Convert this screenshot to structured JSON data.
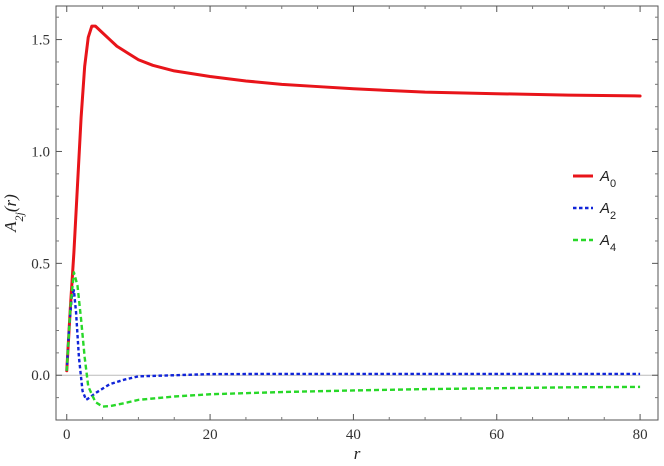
{
  "chart_data": {
    "type": "line",
    "xlabel": "r",
    "ylabel": "A_{2j}(r)",
    "xlim": [
      -1.5,
      82.5
    ],
    "ylim": [
      -0.2,
      1.65
    ],
    "x_ticks": [
      0,
      20,
      40,
      60,
      80
    ],
    "x_tick_labels": [
      "0",
      "20",
      "40",
      "60",
      "80"
    ],
    "y_ticks": [
      0.0,
      0.5,
      1.0,
      1.5
    ],
    "y_tick_labels": [
      "0.0",
      "0.5",
      "1.0",
      "1.5"
    ],
    "grid": false,
    "legend_position": "right",
    "series": [
      {
        "name": "A_0",
        "color": "#e8141a",
        "dash": "solid",
        "points": [
          [
            0,
            0.02
          ],
          [
            0.5,
            0.3
          ],
          [
            1,
            0.55
          ],
          [
            1.5,
            0.85
          ],
          [
            2,
            1.15
          ],
          [
            2.5,
            1.38
          ],
          [
            3,
            1.51
          ],
          [
            3.5,
            1.56
          ],
          [
            4,
            1.56
          ],
          [
            5,
            1.53
          ],
          [
            6,
            1.5
          ],
          [
            7,
            1.47
          ],
          [
            8,
            1.45
          ],
          [
            10,
            1.41
          ],
          [
            12,
            1.385
          ],
          [
            15,
            1.36
          ],
          [
            20,
            1.335
          ],
          [
            25,
            1.315
          ],
          [
            30,
            1.3
          ],
          [
            35,
            1.29
          ],
          [
            40,
            1.28
          ],
          [
            50,
            1.265
          ],
          [
            60,
            1.258
          ],
          [
            70,
            1.252
          ],
          [
            80,
            1.248
          ]
        ]
      },
      {
        "name": "A_2",
        "color": "#1024d8",
        "dash": "dashed",
        "points": [
          [
            0,
            0.02
          ],
          [
            0.3,
            0.2
          ],
          [
            0.7,
            0.35
          ],
          [
            1,
            0.38
          ],
          [
            1.3,
            0.28
          ],
          [
            1.7,
            0.08
          ],
          [
            2.2,
            -0.07
          ],
          [
            2.7,
            -0.11
          ],
          [
            3.2,
            -0.1
          ],
          [
            4,
            -0.08
          ],
          [
            5,
            -0.06
          ],
          [
            6,
            -0.04
          ],
          [
            8,
            -0.02
          ],
          [
            10,
            -0.005
          ],
          [
            15,
            0.0
          ],
          [
            20,
            0.005
          ],
          [
            30,
            0.006
          ],
          [
            40,
            0.006
          ],
          [
            60,
            0.006
          ],
          [
            80,
            0.006
          ]
        ]
      },
      {
        "name": "A_4",
        "color": "#28d828",
        "dash": "dashed",
        "points": [
          [
            0,
            0.02
          ],
          [
            0.5,
            0.3
          ],
          [
            1,
            0.46
          ],
          [
            1.5,
            0.4
          ],
          [
            2,
            0.25
          ],
          [
            2.5,
            0.08
          ],
          [
            3,
            -0.05
          ],
          [
            4,
            -0.12
          ],
          [
            5,
            -0.14
          ],
          [
            6,
            -0.138
          ],
          [
            8,
            -0.125
          ],
          [
            10,
            -0.11
          ],
          [
            15,
            -0.095
          ],
          [
            20,
            -0.085
          ],
          [
            30,
            -0.075
          ],
          [
            40,
            -0.068
          ],
          [
            50,
            -0.062
          ],
          [
            60,
            -0.058
          ],
          [
            70,
            -0.054
          ],
          [
            80,
            -0.052
          ]
        ]
      }
    ]
  }
}
